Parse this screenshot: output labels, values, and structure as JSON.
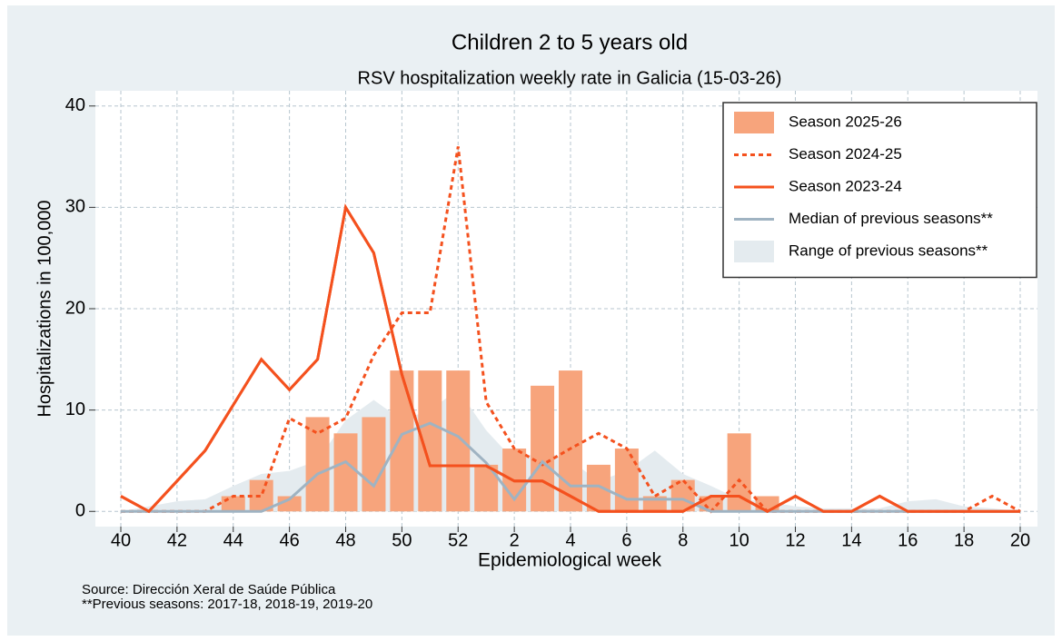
{
  "chart_data": {
    "type": "bar",
    "title": "Children 2 to 5 years old",
    "subtitle": "RSV hospitalization weekly rate in Galicia (15-03-26)",
    "x_label": "Epidemiological week",
    "y_label": "Hospitalizations in 100,000",
    "categories": [
      40,
      null,
      42,
      null,
      44,
      null,
      46,
      null,
      48,
      null,
      50,
      null,
      52,
      null,
      2,
      null,
      4,
      null,
      6,
      null,
      8,
      null,
      10,
      null,
      12,
      null,
      14,
      null,
      16,
      null,
      18,
      null,
      20
    ],
    "ylim": [
      -1.5,
      41.5
    ],
    "yticks": [
      0,
      10,
      20,
      30,
      40
    ],
    "grid": true,
    "legend": "upper right",
    "series": [
      {
        "name": "Season 2025-26",
        "style": "bar",
        "color": "#f7a47c",
        "values": [
          0,
          0,
          0,
          0,
          1.5,
          3.1,
          1.5,
          9.3,
          7.7,
          9.3,
          13.9,
          13.9,
          13.9,
          4.6,
          6.2,
          12.4,
          13.9,
          4.6,
          6.2,
          1.5,
          3.1,
          1.5,
          7.7,
          1.5,
          null,
          null,
          null,
          null,
          null,
          null,
          null,
          null,
          null
        ]
      },
      {
        "name": "Season 2024-25",
        "style": "dashed",
        "color": "#f4511e",
        "values": [
          0,
          0,
          0,
          0,
          1.5,
          1.5,
          9.2,
          7.7,
          9.2,
          15.4,
          19.6,
          19.6,
          36,
          10.8,
          6.2,
          4.6,
          6.2,
          7.7,
          6.2,
          1.5,
          3.1,
          0,
          3.1,
          0,
          0,
          0,
          0,
          0,
          0,
          0,
          0,
          1.5,
          0
        ]
      },
      {
        "name": "Season 2023-24",
        "style": "solid",
        "color": "#f4511e",
        "values": [
          1.5,
          0,
          3,
          6,
          10.5,
          15,
          12,
          15,
          30,
          25.5,
          13.5,
          4.5,
          4.5,
          4.5,
          3,
          3,
          1.5,
          0,
          0,
          0,
          0,
          1.5,
          1.5,
          0,
          1.5,
          0,
          0,
          1.5,
          0,
          0,
          0,
          0,
          0
        ]
      },
      {
        "name": "Median of previous seasons**",
        "style": "solid",
        "color": "#9fb3c2",
        "values": [
          0,
          0,
          0,
          0,
          0,
          0,
          1.2,
          3.7,
          4.9,
          2.5,
          7.6,
          8.7,
          7.4,
          4.8,
          1.2,
          4.9,
          2.5,
          2.5,
          1.2,
          1.2,
          1.2,
          0,
          0,
          0,
          0,
          0,
          0,
          0,
          0,
          0,
          0,
          0,
          0
        ]
      },
      {
        "name": "Range of previous seasons**",
        "style": "area",
        "color": "#e4ebef",
        "values": [
          0,
          0.5,
          1,
          1.2,
          2.5,
          3.7,
          4,
          5,
          9,
          11,
          9,
          10,
          12,
          8,
          5,
          6,
          5,
          3,
          4,
          6,
          3.7,
          2.5,
          1.2,
          1,
          0.5,
          0.3,
          0.3,
          0.3,
          1,
          1.2,
          0.5,
          0.3,
          0
        ]
      }
    ],
    "notes": [
      "Source: Dirección Xeral de Saúde Pública",
      "**Previous seasons: 2017-18, 2018-19, 2019-20"
    ]
  }
}
